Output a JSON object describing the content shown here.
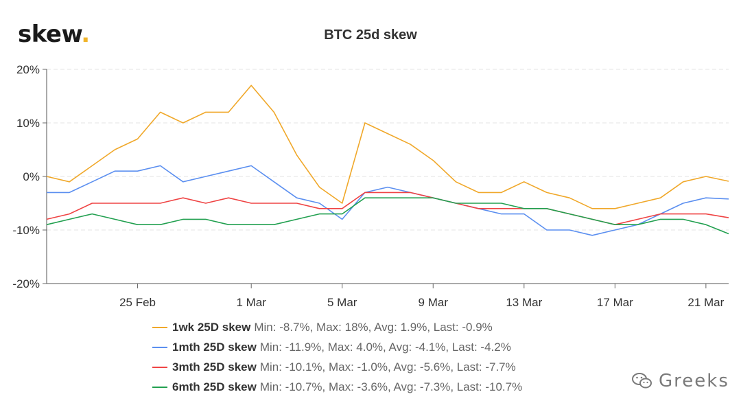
{
  "brand": {
    "name": "skew",
    "dot": "."
  },
  "watermark": "Greeks",
  "chart_data": {
    "type": "line",
    "title": "BTC 25d skew",
    "xlabel": "",
    "ylabel": "",
    "x_range": [
      "2020-02-21",
      "2020-03-22"
    ],
    "x_ticks": [
      {
        "date": "2020-02-25",
        "label": "25 Feb"
      },
      {
        "date": "2020-03-01",
        "label": "1 Mar"
      },
      {
        "date": "2020-03-05",
        "label": "5 Mar"
      },
      {
        "date": "2020-03-09",
        "label": "9 Mar"
      },
      {
        "date": "2020-03-13",
        "label": "13 Mar"
      },
      {
        "date": "2020-03-17",
        "label": "17 Mar"
      },
      {
        "date": "2020-03-21",
        "label": "21 Mar"
      }
    ],
    "y_ticks": [
      {
        "value": 20,
        "label": "20%"
      },
      {
        "value": 10,
        "label": "10%"
      },
      {
        "value": 0,
        "label": "0%"
      },
      {
        "value": -10,
        "label": "-10%"
      },
      {
        "value": -20,
        "label": "-20%"
      }
    ],
    "ylim": [
      -20,
      20
    ],
    "grid": "horizontal dashed",
    "legend_position": "bottom",
    "series": [
      {
        "name": "1wk 25D skew",
        "color": "#f0a82a",
        "stats": "Min: -8.7%, Max: 18%, Avg: 1.9%, Last: -0.9%",
        "points": [
          [
            "2020-02-21",
            0
          ],
          [
            "2020-02-22",
            -1
          ],
          [
            "2020-02-23",
            2
          ],
          [
            "2020-02-24",
            5
          ],
          [
            "2020-02-25",
            7
          ],
          [
            "2020-02-26",
            12
          ],
          [
            "2020-02-27",
            10
          ],
          [
            "2020-02-28",
            12
          ],
          [
            "2020-02-29",
            12
          ],
          [
            "2020-03-01",
            17
          ],
          [
            "2020-03-02",
            12
          ],
          [
            "2020-03-03",
            4
          ],
          [
            "2020-03-04",
            -2
          ],
          [
            "2020-03-05",
            -5
          ],
          [
            "2020-03-06",
            10
          ],
          [
            "2020-03-07",
            8
          ],
          [
            "2020-03-08",
            6
          ],
          [
            "2020-03-09",
            3
          ],
          [
            "2020-03-10",
            -1
          ],
          [
            "2020-03-11",
            -3
          ],
          [
            "2020-03-12",
            -3
          ],
          [
            "2020-03-13",
            -1
          ],
          [
            "2020-03-14",
            -3
          ],
          [
            "2020-03-15",
            -4
          ],
          [
            "2020-03-16",
            -6
          ],
          [
            "2020-03-17",
            -6
          ],
          [
            "2020-03-18",
            -5
          ],
          [
            "2020-03-19",
            -4
          ],
          [
            "2020-03-20",
            -1
          ],
          [
            "2020-03-21",
            0
          ],
          [
            "2020-03-22",
            -0.9
          ]
        ]
      },
      {
        "name": "1mth 25D skew",
        "color": "#5b8ff0",
        "stats": "Min: -11.9%, Max: 4.0%, Avg: -4.1%, Last: -4.2%",
        "points": [
          [
            "2020-02-21",
            -3
          ],
          [
            "2020-02-22",
            -3
          ],
          [
            "2020-02-23",
            -1
          ],
          [
            "2020-02-24",
            1
          ],
          [
            "2020-02-25",
            1
          ],
          [
            "2020-02-26",
            2
          ],
          [
            "2020-02-27",
            -1
          ],
          [
            "2020-02-28",
            0
          ],
          [
            "2020-02-29",
            1
          ],
          [
            "2020-03-01",
            2
          ],
          [
            "2020-03-02",
            -1
          ],
          [
            "2020-03-03",
            -4
          ],
          [
            "2020-03-04",
            -5
          ],
          [
            "2020-03-05",
            -8
          ],
          [
            "2020-03-06",
            -3
          ],
          [
            "2020-03-07",
            -2
          ],
          [
            "2020-03-08",
            -3
          ],
          [
            "2020-03-09",
            -4
          ],
          [
            "2020-03-10",
            -5
          ],
          [
            "2020-03-11",
            -6
          ],
          [
            "2020-03-12",
            -7
          ],
          [
            "2020-03-13",
            -7
          ],
          [
            "2020-03-14",
            -10
          ],
          [
            "2020-03-15",
            -10
          ],
          [
            "2020-03-16",
            -11
          ],
          [
            "2020-03-17",
            -10
          ],
          [
            "2020-03-18",
            -9
          ],
          [
            "2020-03-19",
            -7
          ],
          [
            "2020-03-20",
            -5
          ],
          [
            "2020-03-21",
            -4
          ],
          [
            "2020-03-22",
            -4.2
          ]
        ]
      },
      {
        "name": "3mth 25D skew",
        "color": "#ef4444",
        "stats": "Min: -10.1%, Max: -1.0%, Avg: -5.6%, Last: -7.7%",
        "points": [
          [
            "2020-02-21",
            -8
          ],
          [
            "2020-02-22",
            -7
          ],
          [
            "2020-02-23",
            -5
          ],
          [
            "2020-02-24",
            -5
          ],
          [
            "2020-02-25",
            -5
          ],
          [
            "2020-02-26",
            -5
          ],
          [
            "2020-02-27",
            -4
          ],
          [
            "2020-02-28",
            -5
          ],
          [
            "2020-02-29",
            -4
          ],
          [
            "2020-03-01",
            -5
          ],
          [
            "2020-03-02",
            -5
          ],
          [
            "2020-03-03",
            -5
          ],
          [
            "2020-03-04",
            -6
          ],
          [
            "2020-03-05",
            -6
          ],
          [
            "2020-03-06",
            -3
          ],
          [
            "2020-03-07",
            -3
          ],
          [
            "2020-03-08",
            -3
          ],
          [
            "2020-03-09",
            -4
          ],
          [
            "2020-03-10",
            -5
          ],
          [
            "2020-03-11",
            -6
          ],
          [
            "2020-03-12",
            -6
          ],
          [
            "2020-03-13",
            -6
          ],
          [
            "2020-03-14",
            -6
          ],
          [
            "2020-03-15",
            -7
          ],
          [
            "2020-03-16",
            -8
          ],
          [
            "2020-03-17",
            -9
          ],
          [
            "2020-03-18",
            -8
          ],
          [
            "2020-03-19",
            -7
          ],
          [
            "2020-03-20",
            -7
          ],
          [
            "2020-03-21",
            -7
          ],
          [
            "2020-03-22",
            -7.7
          ]
        ]
      },
      {
        "name": "6mth 25D skew",
        "color": "#22a050",
        "stats": "Min: -10.7%, Max: -3.6%, Avg: -7.3%, Last: -10.7%",
        "points": [
          [
            "2020-02-21",
            -9
          ],
          [
            "2020-02-22",
            -8
          ],
          [
            "2020-02-23",
            -7
          ],
          [
            "2020-02-24",
            -8
          ],
          [
            "2020-02-25",
            -9
          ],
          [
            "2020-02-26",
            -9
          ],
          [
            "2020-02-27",
            -8
          ],
          [
            "2020-02-28",
            -8
          ],
          [
            "2020-02-29",
            -9
          ],
          [
            "2020-03-01",
            -9
          ],
          [
            "2020-03-02",
            -9
          ],
          [
            "2020-03-03",
            -8
          ],
          [
            "2020-03-04",
            -7
          ],
          [
            "2020-03-05",
            -7
          ],
          [
            "2020-03-06",
            -4
          ],
          [
            "2020-03-07",
            -4
          ],
          [
            "2020-03-08",
            -4
          ],
          [
            "2020-03-09",
            -4
          ],
          [
            "2020-03-10",
            -5
          ],
          [
            "2020-03-11",
            -5
          ],
          [
            "2020-03-12",
            -5
          ],
          [
            "2020-03-13",
            -6
          ],
          [
            "2020-03-14",
            -6
          ],
          [
            "2020-03-15",
            -7
          ],
          [
            "2020-03-16",
            -8
          ],
          [
            "2020-03-17",
            -9
          ],
          [
            "2020-03-18",
            -9
          ],
          [
            "2020-03-19",
            -8
          ],
          [
            "2020-03-20",
            -8
          ],
          [
            "2020-03-21",
            -9
          ],
          [
            "2020-03-22",
            -10.7
          ]
        ]
      }
    ]
  }
}
